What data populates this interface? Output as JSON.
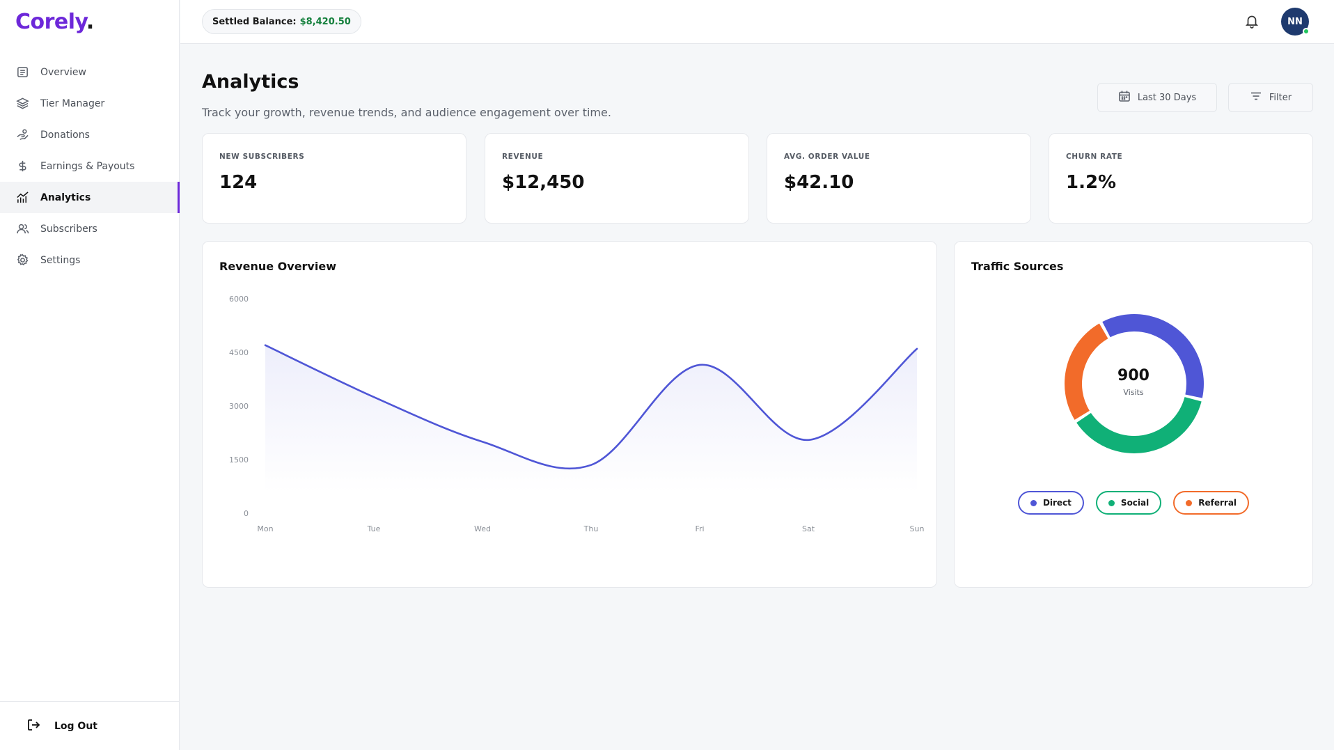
{
  "app": {
    "logo_text": "Corely",
    "logo_dot": ".",
    "accent": "#6d28d9"
  },
  "sidebar": {
    "items": [
      {
        "label": "Overview",
        "icon": "document-icon",
        "active": false
      },
      {
        "label": "Tier Manager",
        "icon": "layers-icon",
        "active": false
      },
      {
        "label": "Donations",
        "icon": "donation-icon",
        "active": false
      },
      {
        "label": "Earnings & Payouts",
        "icon": "dollar-icon",
        "active": false
      },
      {
        "label": "Analytics",
        "icon": "analytics-icon",
        "active": true
      },
      {
        "label": "Subscribers",
        "icon": "users-icon",
        "active": false
      },
      {
        "label": "Settings",
        "icon": "gear-icon",
        "active": false
      }
    ],
    "logout_label": "Log Out"
  },
  "header": {
    "balance_label": "Settled Balance:",
    "balance_value": "$8,420.50",
    "balance_color": "#15803d",
    "avatar_initials": "NN",
    "avatar_color": "#1e3a6e"
  },
  "main": {
    "title": "Analytics",
    "subtitle": "Track your growth, revenue trends, and audience engagement over time.",
    "date_button": "Last 30 Days",
    "filter_button": "Filter",
    "stats": [
      {
        "label": "NEW SUBSCRIBERS",
        "value": "124"
      },
      {
        "label": "REVENUE",
        "value": "$12,450"
      },
      {
        "label": "AVG. ORDER VALUE",
        "value": "$42.10"
      },
      {
        "label": "CHURN RATE",
        "value": "1.2%"
      }
    ],
    "revenue_card_title": "Revenue Overview",
    "traffic_card_title": "Traffic Sources"
  },
  "chart_data": [
    {
      "type": "line",
      "title": "Revenue Overview",
      "categories": [
        "Mon",
        "Tue",
        "Wed",
        "Thu",
        "Fri",
        "Sat",
        "Sun"
      ],
      "series": [
        {
          "values": [
            4700,
            3250,
            2000,
            1350,
            4150,
            2050,
            4600
          ],
          "color": "#4f56d6"
        }
      ],
      "yticks": [
        0,
        1500,
        3000,
        4500,
        6000
      ],
      "ylim": [
        0,
        6000
      ],
      "area_fill": true,
      "grid": false
    },
    {
      "type": "pie",
      "title": "Traffic Sources",
      "center_value": "900",
      "center_label": "Visits",
      "slices": [
        {
          "name": "Direct",
          "value": 330,
          "color": "#4f56d6"
        },
        {
          "name": "Social",
          "value": 335,
          "color": "#10b077"
        },
        {
          "name": "Referral",
          "value": 235,
          "color": "#f26b2a"
        }
      ],
      "legend_position": "bottom"
    }
  ]
}
